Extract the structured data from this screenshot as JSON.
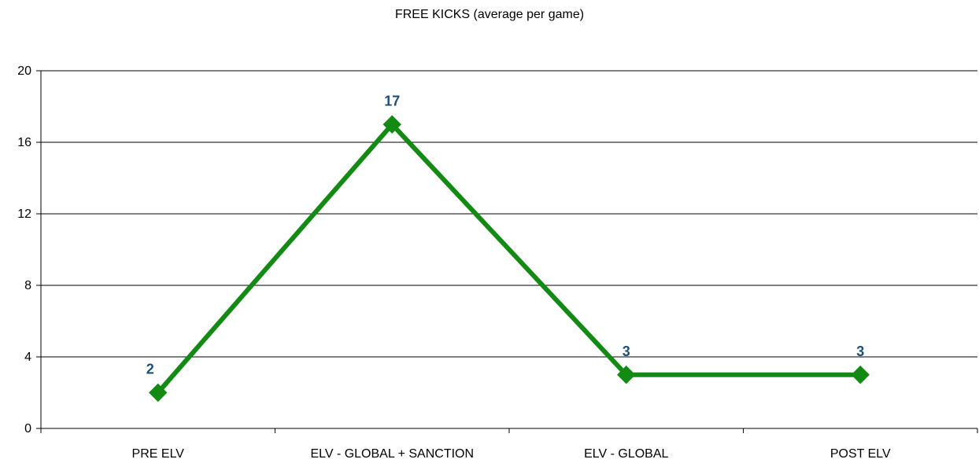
{
  "chart_data": {
    "type": "line",
    "title": "FREE KICKS (average per game)",
    "categories": [
      "PRE ELV",
      "ELV - GLOBAL + SANCTION",
      "ELV - GLOBAL",
      "POST ELV"
    ],
    "series": [
      {
        "values": [
          2,
          17,
          3,
          3
        ],
        "color": "#138a13",
        "marker": "diamond"
      }
    ],
    "data_labels": [
      "2",
      "17",
      "3",
      "3"
    ],
    "data_label_color": "#1f4e79",
    "ylim": [
      0,
      20
    ],
    "yticks": [
      0,
      4,
      8,
      12,
      16,
      20
    ],
    "ytick_labels": [
      "0",
      "4",
      "8",
      "12",
      "16",
      "20"
    ],
    "grid": true,
    "legend": "none",
    "xlabel": "",
    "ylabel": ""
  }
}
